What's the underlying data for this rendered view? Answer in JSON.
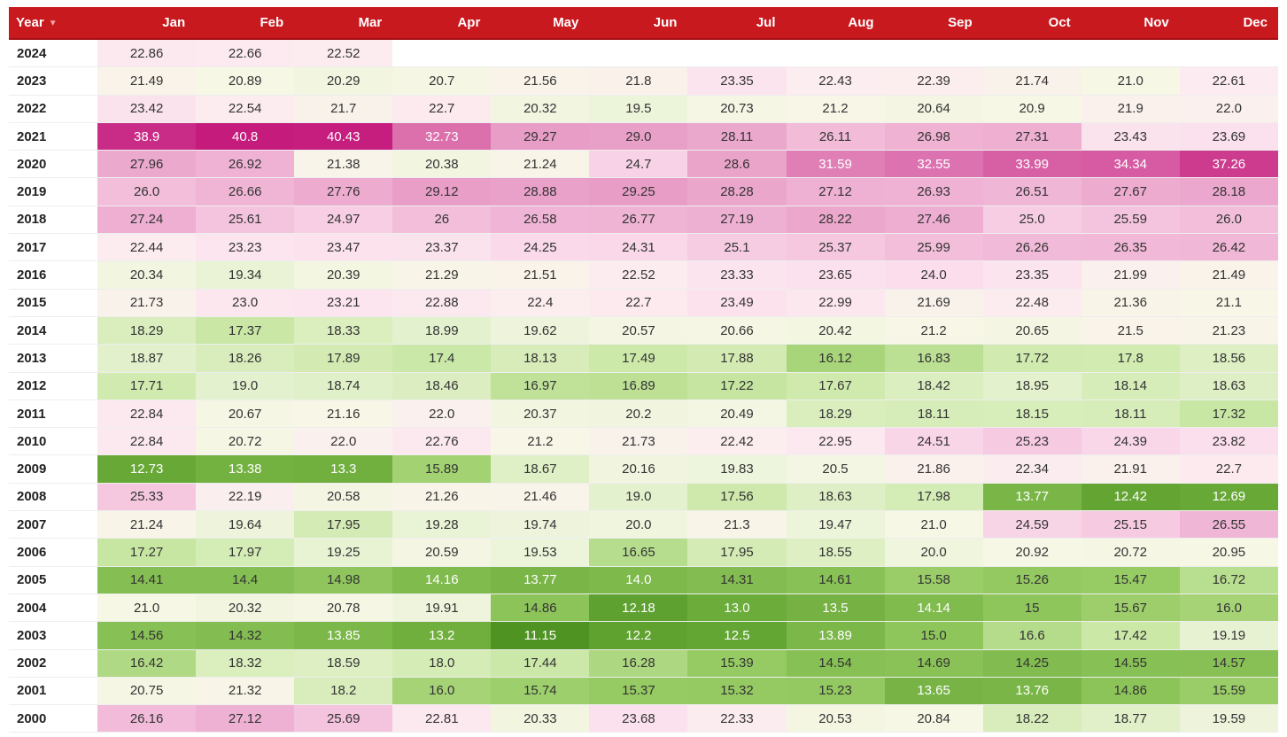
{
  "chart_data": {
    "type": "heatmap",
    "header": {
      "year_label": "Year",
      "sort_icon": "sort-desc-icon"
    },
    "months": [
      "Jan",
      "Feb",
      "Mar",
      "Apr",
      "May",
      "Jun",
      "Jul",
      "Aug",
      "Sep",
      "Oct",
      "Nov",
      "Dec"
    ],
    "rows": [
      {
        "year": "2024",
        "values": [
          "22.86",
          "22.66",
          "22.52",
          "",
          "",
          "",
          "",
          "",
          "",
          "",
          "",
          ""
        ]
      },
      {
        "year": "2023",
        "values": [
          "21.49",
          "20.89",
          "20.29",
          "20.7",
          "21.56",
          "21.8",
          "23.35",
          "22.43",
          "22.39",
          "21.74",
          "21.0",
          "22.61"
        ]
      },
      {
        "year": "2022",
        "values": [
          "23.42",
          "22.54",
          "21.7",
          "22.7",
          "20.32",
          "19.5",
          "20.73",
          "21.2",
          "20.64",
          "20.9",
          "21.9",
          "22.0"
        ]
      },
      {
        "year": "2021",
        "values": [
          "38.9",
          "40.8",
          "40.43",
          "32.73",
          "29.27",
          "29.0",
          "28.11",
          "26.11",
          "26.98",
          "27.31",
          "23.43",
          "23.69"
        ]
      },
      {
        "year": "2020",
        "values": [
          "27.96",
          "26.92",
          "21.38",
          "20.38",
          "21.24",
          "24.7",
          "28.6",
          "31.59",
          "32.55",
          "33.99",
          "34.34",
          "37.26"
        ]
      },
      {
        "year": "2019",
        "values": [
          "26.0",
          "26.66",
          "27.76",
          "29.12",
          "28.88",
          "29.25",
          "28.28",
          "27.12",
          "26.93",
          "26.51",
          "27.67",
          "28.18"
        ]
      },
      {
        "year": "2018",
        "values": [
          "27.24",
          "25.61",
          "24.97",
          "26",
          "26.58",
          "26.77",
          "27.19",
          "28.22",
          "27.46",
          "25.0",
          "25.59",
          "26.0"
        ]
      },
      {
        "year": "2017",
        "values": [
          "22.44",
          "23.23",
          "23.47",
          "23.37",
          "24.25",
          "24.31",
          "25.1",
          "25.37",
          "25.99",
          "26.26",
          "26.35",
          "26.42"
        ]
      },
      {
        "year": "2016",
        "values": [
          "20.34",
          "19.34",
          "20.39",
          "21.29",
          "21.51",
          "22.52",
          "23.33",
          "23.65",
          "24.0",
          "23.35",
          "21.99",
          "21.49"
        ]
      },
      {
        "year": "2015",
        "values": [
          "21.73",
          "23.0",
          "23.21",
          "22.88",
          "22.4",
          "22.7",
          "23.49",
          "22.99",
          "21.69",
          "22.48",
          "21.36",
          "21.1"
        ]
      },
      {
        "year": "2014",
        "values": [
          "18.29",
          "17.37",
          "18.33",
          "18.99",
          "19.62",
          "20.57",
          "20.66",
          "20.42",
          "21.2",
          "20.65",
          "21.5",
          "21.23"
        ]
      },
      {
        "year": "2013",
        "values": [
          "18.87",
          "18.26",
          "17.89",
          "17.4",
          "18.13",
          "17.49",
          "17.88",
          "16.12",
          "16.83",
          "17.72",
          "17.8",
          "18.56"
        ]
      },
      {
        "year": "2012",
        "values": [
          "17.71",
          "19.0",
          "18.74",
          "18.46",
          "16.97",
          "16.89",
          "17.22",
          "17.67",
          "18.42",
          "18.95",
          "18.14",
          "18.63"
        ]
      },
      {
        "year": "2011",
        "values": [
          "22.84",
          "20.67",
          "21.16",
          "22.0",
          "20.37",
          "20.2",
          "20.49",
          "18.29",
          "18.11",
          "18.15",
          "18.11",
          "17.32"
        ]
      },
      {
        "year": "2010",
        "values": [
          "22.84",
          "20.72",
          "22.0",
          "22.76",
          "21.2",
          "21.73",
          "22.42",
          "22.95",
          "24.51",
          "25.23",
          "24.39",
          "23.82"
        ]
      },
      {
        "year": "2009",
        "values": [
          "12.73",
          "13.38",
          "13.3",
          "15.89",
          "18.67",
          "20.16",
          "19.83",
          "20.5",
          "21.86",
          "22.34",
          "21.91",
          "22.7"
        ]
      },
      {
        "year": "2008",
        "values": [
          "25.33",
          "22.19",
          "20.58",
          "21.26",
          "21.46",
          "19.0",
          "17.56",
          "18.63",
          "17.98",
          "13.77",
          "12.42",
          "12.69"
        ]
      },
      {
        "year": "2007",
        "values": [
          "21.24",
          "19.64",
          "17.95",
          "19.28",
          "19.74",
          "20.0",
          "21.3",
          "19.47",
          "21.0",
          "24.59",
          "25.15",
          "26.55"
        ]
      },
      {
        "year": "2006",
        "values": [
          "17.27",
          "17.97",
          "19.25",
          "20.59",
          "19.53",
          "16.65",
          "17.95",
          "18.55",
          "20.0",
          "20.92",
          "20.72",
          "20.95"
        ]
      },
      {
        "year": "2005",
        "values": [
          "14.41",
          "14.4",
          "14.98",
          "14.16",
          "13.77",
          "14.0",
          "14.31",
          "14.61",
          "15.58",
          "15.26",
          "15.47",
          "16.72"
        ]
      },
      {
        "year": "2004",
        "values": [
          "21.0",
          "20.32",
          "20.78",
          "19.91",
          "14.86",
          "12.18",
          "13.0",
          "13.5",
          "14.14",
          "15",
          "15.67",
          "16.0"
        ]
      },
      {
        "year": "2003",
        "values": [
          "14.56",
          "14.32",
          "13.85",
          "13.2",
          "11.15",
          "12.2",
          "12.5",
          "13.89",
          "15.0",
          "16.6",
          "17.42",
          "19.19"
        ]
      },
      {
        "year": "2002",
        "values": [
          "16.42",
          "18.32",
          "18.59",
          "18.0",
          "17.44",
          "16.28",
          "15.39",
          "14.54",
          "14.69",
          "14.25",
          "14.55",
          "14.57"
        ]
      },
      {
        "year": "2001",
        "values": [
          "20.75",
          "21.32",
          "18.2",
          "16.0",
          "15.74",
          "15.37",
          "15.32",
          "15.23",
          "13.65",
          "13.76",
          "14.86",
          "15.59"
        ]
      },
      {
        "year": "2000",
        "values": [
          "26.16",
          "27.12",
          "25.69",
          "22.81",
          "20.33",
          "23.68",
          "22.33",
          "20.53",
          "20.84",
          "18.22",
          "18.77",
          "19.59"
        ]
      }
    ],
    "color_scale": {
      "low": "#4d9221",
      "mid": "#f7f7e6",
      "high": "#c51b7d",
      "header_bg": "#c8191f"
    }
  }
}
